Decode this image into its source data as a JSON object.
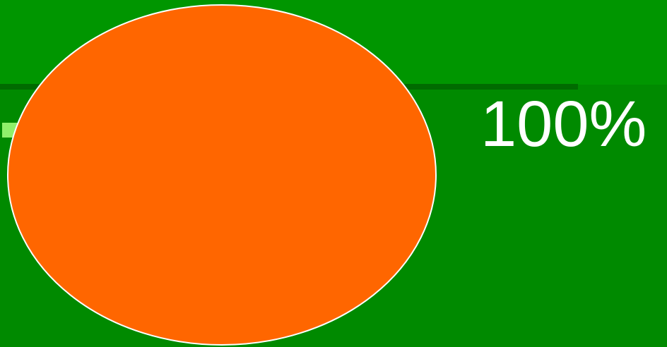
{
  "screen": {
    "progress_text": "100%",
    "progress_value": 1.0
  },
  "colors": {
    "background": "#008a00",
    "top_band": "#009600",
    "divider": "#006b00",
    "progress_marker": "#8ff06a",
    "ellipse_fill": "#ff6600",
    "ellipse_stroke": "#ffffff",
    "text": "#ffffff"
  }
}
